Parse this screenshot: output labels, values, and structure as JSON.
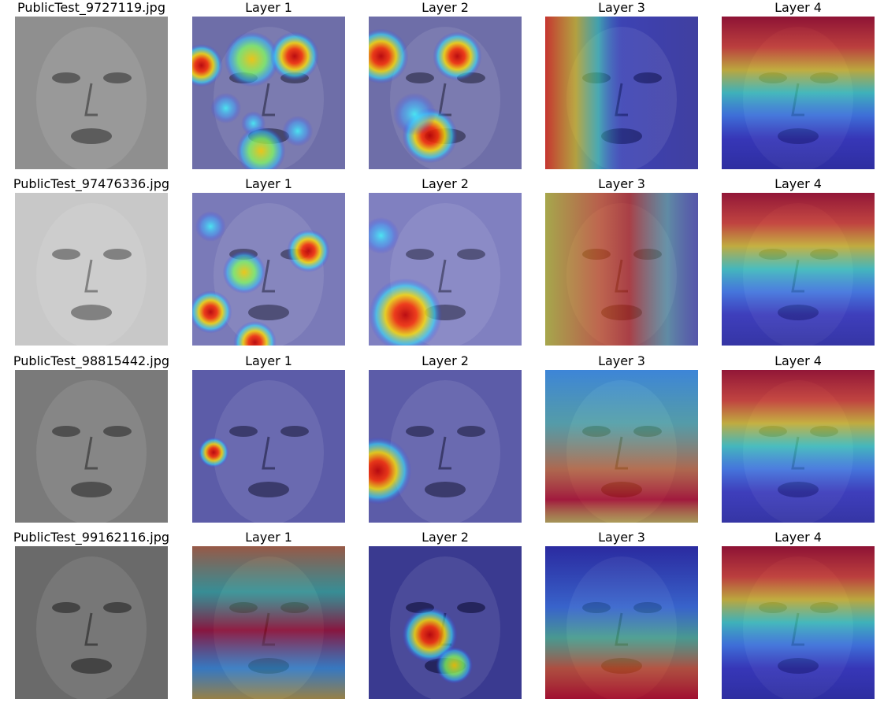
{
  "figure": {
    "rows": [
      {
        "image_name": "PublicTest_9727119.jpg",
        "panels": [
          {
            "title": "PublicTest_9727119.jpg",
            "kind": "original",
            "tone": "#8f8f8f"
          },
          {
            "title": "Layer 1",
            "kind": "heatmap",
            "tone": "#6e6ea8"
          },
          {
            "title": "Layer 2",
            "kind": "heatmap",
            "tone": "#6e6ea8"
          },
          {
            "title": "Layer 3",
            "kind": "heatmap",
            "tone": "#4040a0"
          },
          {
            "title": "Layer 4",
            "kind": "heatmap",
            "tone": "#3c3cb0"
          }
        ]
      },
      {
        "image_name": "PublicTest_97476336.jpg",
        "panels": [
          {
            "title": "PublicTest_97476336.jpg",
            "kind": "original",
            "tone": "#c8c8c8"
          },
          {
            "title": "Layer 1",
            "kind": "heatmap",
            "tone": "#7a7ab8"
          },
          {
            "title": "Layer 2",
            "kind": "heatmap",
            "tone": "#8080c0"
          },
          {
            "title": "Layer 3",
            "kind": "heatmap",
            "tone": "#6060a8"
          },
          {
            "title": "Layer 4",
            "kind": "heatmap",
            "tone": "#4a4ab8"
          }
        ]
      },
      {
        "image_name": "PublicTest_98815442.jpg",
        "panels": [
          {
            "title": "PublicTest_98815442.jpg",
            "kind": "original",
            "tone": "#7a7a7a"
          },
          {
            "title": "Layer 1",
            "kind": "heatmap",
            "tone": "#5c5ca8"
          },
          {
            "title": "Layer 2",
            "kind": "heatmap",
            "tone": "#5c5ca8"
          },
          {
            "title": "Layer 3",
            "kind": "heatmap",
            "tone": "#4a4ab0"
          },
          {
            "title": "Layer 4",
            "kind": "heatmap",
            "tone": "#4a4ab8"
          }
        ]
      },
      {
        "image_name": "PublicTest_99162116.jpg",
        "panels": [
          {
            "title": "PublicTest_99162116.jpg",
            "kind": "original",
            "tone": "#6a6a6a"
          },
          {
            "title": "Layer 1",
            "kind": "heatmap",
            "tone": "#30308c"
          },
          {
            "title": "Layer 2",
            "kind": "heatmap",
            "tone": "#3a3a90"
          },
          {
            "title": "Layer 3",
            "kind": "heatmap",
            "tone": "#3232a0"
          },
          {
            "title": "Layer 4",
            "kind": "heatmap",
            "tone": "#3c3cb0"
          }
        ]
      }
    ]
  }
}
